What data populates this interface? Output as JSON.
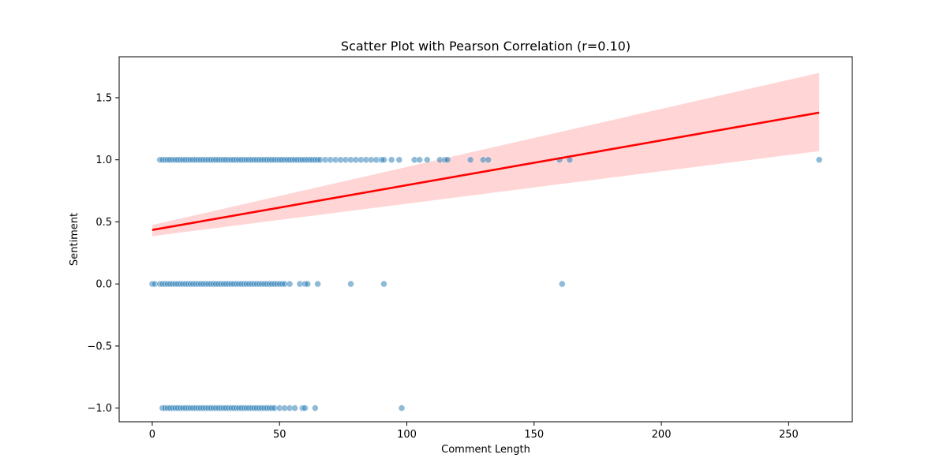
{
  "colors": {
    "points": "#1f77b4",
    "regression_line": "#ff0000",
    "confidence_band": "#ffb3b3"
  },
  "chart_data": {
    "type": "scatter",
    "title": "Scatter Plot with Pearson Correlation (r=0.10)",
    "xlabel": "Comment Length",
    "ylabel": "Sentiment",
    "xlim": [
      -13,
      275
    ],
    "ylim": [
      -1.11,
      1.83
    ],
    "xticks": [
      0,
      50,
      100,
      150,
      200,
      250
    ],
    "yticks": [
      -1.0,
      -0.5,
      0.0,
      0.5,
      1.0,
      1.5
    ],
    "xtick_labels": [
      "0",
      "50",
      "100",
      "150",
      "200",
      "250"
    ],
    "ytick_labels": [
      "−1.0",
      "−0.5",
      "0.0",
      "0.5",
      "1.0",
      "1.5"
    ],
    "grid": false,
    "series": [
      {
        "values": [
          {
            "y": 1,
            "x": [
              3,
              4,
              5,
              6,
              7,
              8,
              9,
              10,
              11,
              12,
              13,
              14,
              15,
              16,
              17,
              18,
              19,
              20,
              21,
              22,
              23,
              24,
              25,
              26,
              27,
              28,
              29,
              30,
              31,
              32,
              33,
              34,
              35,
              36,
              37,
              38,
              39,
              40,
              41,
              42,
              43,
              44,
              45,
              46,
              47,
              48,
              49,
              50,
              51,
              52,
              53,
              54,
              55,
              56,
              57,
              58,
              59,
              60,
              61,
              62,
              63,
              64,
              65,
              66,
              68,
              70,
              72,
              74,
              76,
              78,
              80,
              82,
              84,
              86,
              88,
              90,
              91,
              94,
              97,
              103,
              105,
              108,
              113,
              115,
              116,
              125,
              130,
              132,
              160,
              164,
              262
            ]
          },
          {
            "y": 0,
            "x": [
              0,
              1,
              3,
              4,
              5,
              6,
              7,
              8,
              9,
              10,
              11,
              12,
              13,
              14,
              15,
              16,
              17,
              18,
              19,
              20,
              21,
              22,
              23,
              24,
              25,
              26,
              27,
              28,
              29,
              30,
              31,
              32,
              33,
              34,
              35,
              36,
              37,
              38,
              39,
              40,
              41,
              42,
              43,
              44,
              45,
              46,
              47,
              48,
              49,
              50,
              51,
              52,
              54,
              58,
              60,
              61,
              65,
              78,
              91,
              161
            ]
          },
          {
            "y": -1,
            "x": [
              4,
              5,
              6,
              7,
              8,
              9,
              10,
              11,
              12,
              13,
              14,
              15,
              16,
              17,
              18,
              19,
              20,
              21,
              22,
              23,
              24,
              25,
              26,
              27,
              28,
              29,
              30,
              31,
              32,
              33,
              34,
              35,
              36,
              37,
              38,
              39,
              40,
              41,
              42,
              43,
              44,
              45,
              46,
              47,
              48,
              50,
              52,
              54,
              56,
              59,
              60,
              64,
              98
            ]
          }
        ]
      }
    ],
    "regression": {
      "x": [
        0,
        262
      ],
      "y": [
        0.435,
        1.38
      ],
      "ci_lower": [
        0.385,
        1.07
      ],
      "ci_upper": [
        0.475,
        1.7
      ]
    }
  }
}
